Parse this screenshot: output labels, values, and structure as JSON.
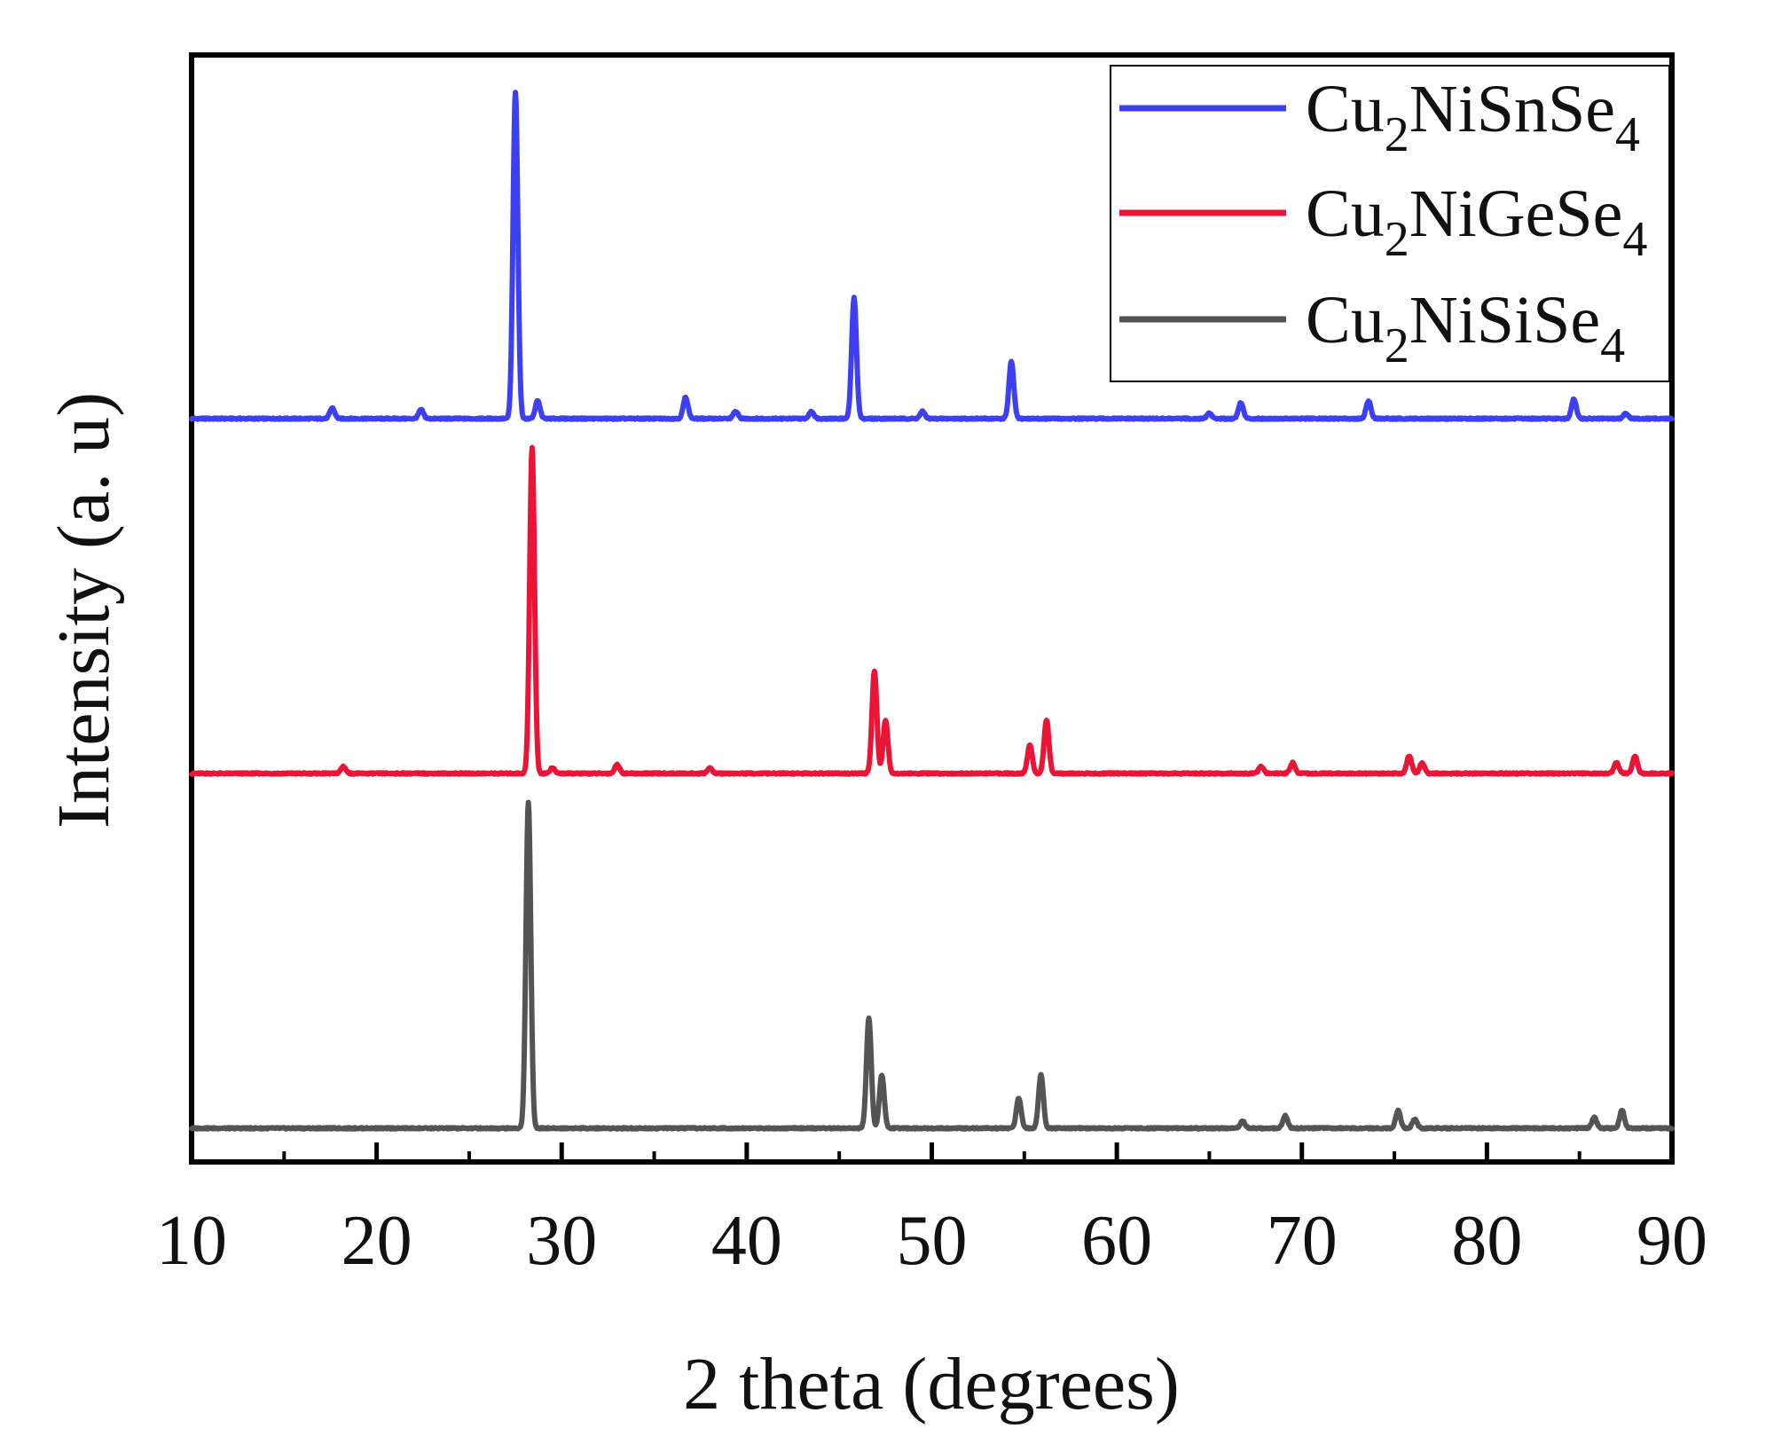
{
  "chart_data": {
    "type": "line",
    "title": "",
    "xlabel": "2 theta (degrees)",
    "ylabel": "Intensity (a. u)",
    "xlim": [
      10,
      90
    ],
    "xticks": [
      10,
      20,
      30,
      40,
      50,
      60,
      70,
      80,
      90
    ],
    "xtick_labels": [
      "10",
      "20",
      "30",
      "40",
      "50",
      "60",
      "70",
      "80",
      "90"
    ],
    "ylim": [
      0,
      3
    ],
    "y_ticks_shown": false,
    "grid": false,
    "legend": {
      "placement": "top-right",
      "boxed": true
    },
    "baseline_offsets": [
      2,
      1,
      0
    ],
    "series": [
      {
        "name": "Cu2NiSnSe4",
        "legend_label": {
          "base": "Cu",
          "sub1": "2",
          "mid": "NiSnSe",
          "sub2": "4"
        },
        "color": "#3d3ff2",
        "offset": 2,
        "peaks": [
          [
            17.6,
            0.03
          ],
          [
            22.4,
            0.025
          ],
          [
            27.5,
            0.92
          ],
          [
            28.7,
            0.05
          ],
          [
            36.7,
            0.06
          ],
          [
            39.4,
            0.02
          ],
          [
            43.5,
            0.02
          ],
          [
            45.8,
            0.34
          ],
          [
            49.5,
            0.02
          ],
          [
            54.3,
            0.16
          ],
          [
            65.0,
            0.015
          ],
          [
            66.7,
            0.045
          ],
          [
            73.6,
            0.05
          ],
          [
            84.7,
            0.055
          ],
          [
            87.5,
            0.015
          ]
        ]
      },
      {
        "name": "Cu2NiGeSe4",
        "legend_label": {
          "base": "Cu",
          "sub1": "2",
          "mid": "NiGeSe",
          "sub2": "4"
        },
        "color": "#ea1437",
        "offset": 1,
        "peaks": [
          [
            18.2,
            0.02
          ],
          [
            28.4,
            0.92
          ],
          [
            29.5,
            0.015
          ],
          [
            33.0,
            0.025
          ],
          [
            38.0,
            0.015
          ],
          [
            46.9,
            0.29
          ],
          [
            47.5,
            0.15
          ],
          [
            55.3,
            0.08
          ],
          [
            56.2,
            0.15
          ],
          [
            67.8,
            0.02
          ],
          [
            69.5,
            0.03
          ],
          [
            75.8,
            0.05
          ],
          [
            76.5,
            0.03
          ],
          [
            87.0,
            0.03
          ],
          [
            88.0,
            0.05
          ]
        ]
      },
      {
        "name": "Cu2NiSiSe4",
        "legend_label": {
          "base": "Cu",
          "sub1": "2",
          "mid": "NiSiSe",
          "sub2": "4"
        },
        "color": "#545454",
        "offset": 0,
        "peaks": [
          [
            28.2,
            0.92
          ],
          [
            46.6,
            0.31
          ],
          [
            47.3,
            0.15
          ],
          [
            54.7,
            0.085
          ],
          [
            55.9,
            0.15
          ],
          [
            66.8,
            0.02
          ],
          [
            69.1,
            0.035
          ],
          [
            75.2,
            0.05
          ],
          [
            76.1,
            0.025
          ],
          [
            85.8,
            0.03
          ],
          [
            87.3,
            0.05
          ]
        ]
      }
    ]
  }
}
